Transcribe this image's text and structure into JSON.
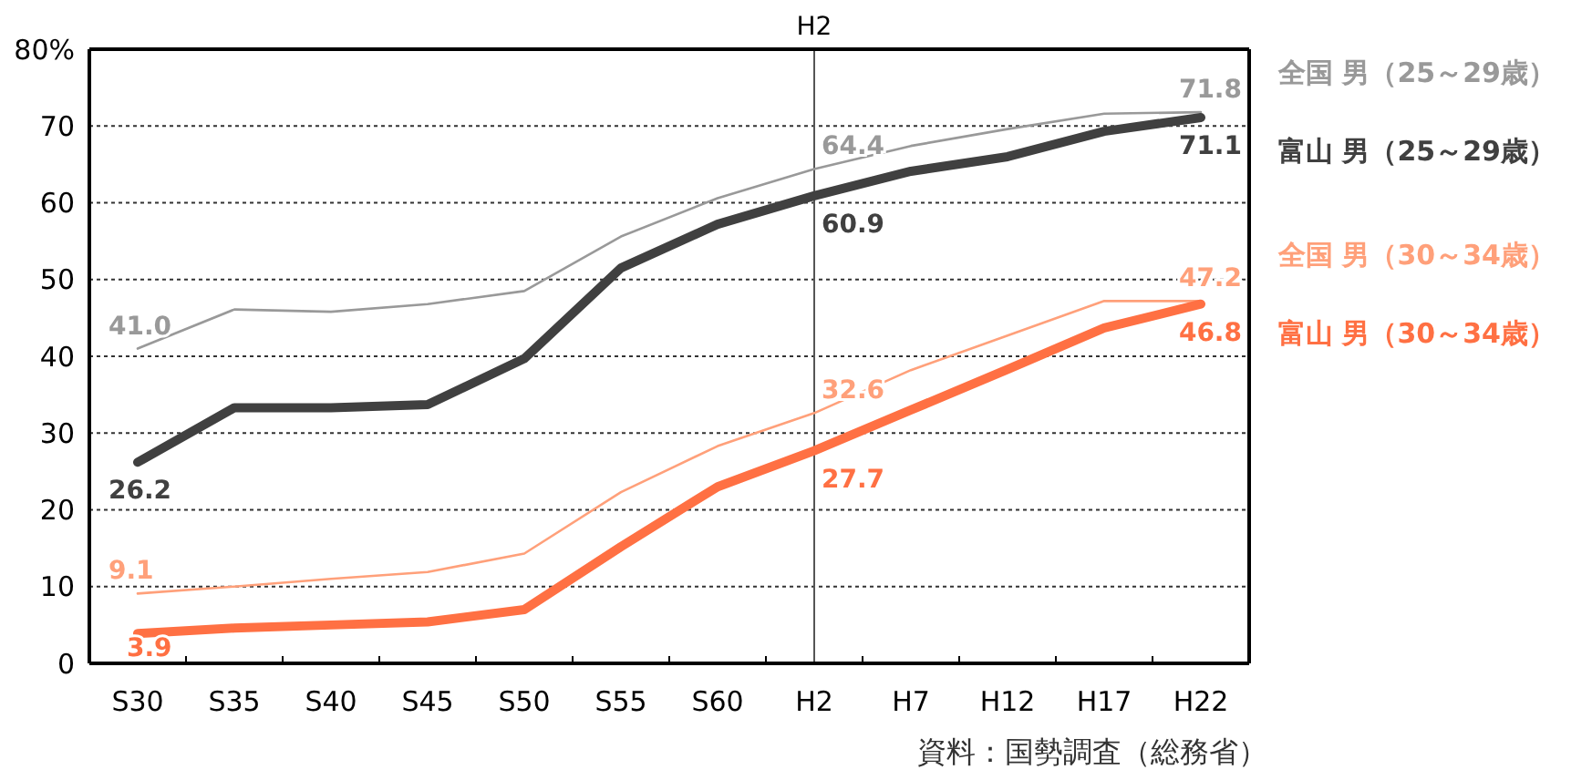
{
  "chart_data": {
    "type": "line",
    "categories": [
      "S30",
      "S35",
      "S40",
      "S45",
      "S50",
      "S55",
      "S60",
      "H2",
      "H7",
      "H12",
      "H17",
      "H22"
    ],
    "ylim": [
      0,
      80
    ],
    "yticks": [
      0,
      10,
      20,
      30,
      40,
      50,
      60,
      70,
      {
        "value": 80,
        "label": "80%"
      }
    ],
    "grid": "y",
    "legend": "right",
    "marker": "none",
    "line_style": "solid",
    "series": [
      {
        "name": "全国 男（25～29歳）",
        "color": "#999999",
        "values": [
          41.0,
          46.1,
          45.8,
          46.8,
          48.5,
          55.6,
          60.6,
          64.4,
          67.4,
          69.6,
          71.6,
          71.8
        ],
        "value_labels": [
          "41.0",
          null,
          null,
          null,
          null,
          null,
          null,
          "64.4",
          null,
          null,
          null,
          "71.8"
        ]
      },
      {
        "name": "富山 男（25～29歳）",
        "color": "#404040",
        "values": [
          26.2,
          33.3,
          33.3,
          33.7,
          39.7,
          51.5,
          57.2,
          60.9,
          64.1,
          66.0,
          69.3,
          71.1
        ],
        "value_labels": [
          "26.2",
          null,
          null,
          null,
          null,
          null,
          null,
          "60.9",
          null,
          null,
          null,
          "71.1"
        ]
      },
      {
        "name": "全国 男（30～34歳）",
        "color": "#ffa07a",
        "values": [
          9.1,
          10.0,
          11.0,
          11.9,
          14.3,
          22.3,
          28.3,
          32.6,
          38.2,
          42.7,
          47.2,
          47.2
        ],
        "value_labels": [
          "9.1",
          null,
          null,
          null,
          null,
          null,
          null,
          "32.6",
          null,
          null,
          null,
          "47.2"
        ]
      },
      {
        "name": "富山 男（30～34歳）",
        "color": "#ff7043",
        "values": [
          3.9,
          4.6,
          5.0,
          5.4,
          7.0,
          15.2,
          23.0,
          27.7,
          33.0,
          38.3,
          43.7,
          46.8
        ],
        "value_labels": [
          "3.9",
          null,
          null,
          null,
          null,
          null,
          null,
          "27.7",
          null,
          null,
          null,
          "46.8"
        ]
      }
    ],
    "ref_lines": [
      {
        "axis": "x",
        "value": "H2"
      }
    ],
    "annotations": [
      "資料：国勢調査（総務省）",
      {
        "text": "H2",
        "x": "H2",
        "y": 80
      }
    ]
  }
}
